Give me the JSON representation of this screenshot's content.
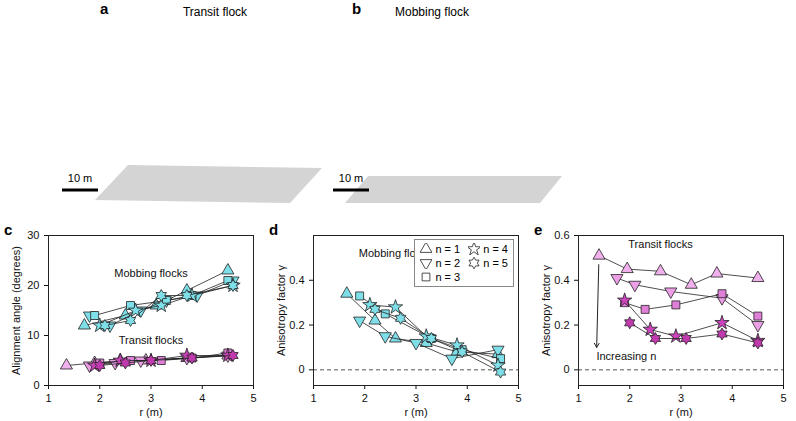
{
  "panels": [
    {
      "panel": "a",
      "title": "Transit flock",
      "scale_bar": "10 m"
    },
    {
      "panel": "b",
      "title": "Mobbing flock",
      "scale_bar": "10 m"
    }
  ],
  "chart_data": [
    {
      "type": "line",
      "panel": "c",
      "xlabel": "r (m)",
      "ylabel": "Alignment angle (degrees)",
      "xlim": [
        1,
        5
      ],
      "xticks": [
        1,
        2,
        3,
        4,
        5
      ],
      "ylim": [
        0,
        30
      ],
      "yticks": [
        0,
        10,
        20,
        30
      ],
      "grid": false,
      "annotations": [
        {
          "text": "Mobbing flocks",
          "x": 3.0,
          "y": 22.5
        },
        {
          "text": "Transit flocks",
          "x": 3.0,
          "y": 9
        }
      ],
      "series": [
        {
          "name": "n = 1",
          "marker": "triangle",
          "color": "#7fdfe9",
          "x": [
            1.7,
            2.5,
            3.1,
            3.7,
            4.5
          ],
          "values": [
            12,
            14,
            16,
            19,
            23
          ]
        },
        {
          "name": "n = 2",
          "marker": "triangle-down",
          "color": "#7fdfe9",
          "x": [
            1.8,
            2.2,
            2.8,
            3.3,
            3.9,
            4.6
          ],
          "values": [
            14,
            12,
            15,
            17,
            18,
            21
          ]
        },
        {
          "name": "n = 3",
          "marker": "square",
          "color": "#7fdfe9",
          "x": [
            1.9,
            2.6,
            3.3,
            3.8,
            4.5
          ],
          "values": [
            14,
            16,
            17,
            18,
            21
          ]
        },
        {
          "name": "n = 4",
          "marker": "star",
          "color": "#7fdfe9",
          "x": [
            2.0,
            2.7,
            3.2,
            3.8,
            4.6
          ],
          "values": [
            12,
            15,
            16,
            18,
            20
          ]
        },
        {
          "name": "n = 5",
          "marker": "hexagram",
          "color": "#7fdfe9",
          "x": [
            2.1,
            2.6,
            3.2,
            3.7,
            4.6
          ],
          "values": [
            12,
            13,
            18,
            18,
            20
          ]
        },
        {
          "name": "n = 1",
          "marker": "triangle",
          "color": "#f0b0ec",
          "x": [
            1.35,
            1.9,
            2.4,
            2.9,
            3.7,
            4.5
          ],
          "values": [
            4,
            4.5,
            5,
            5,
            5.5,
            6
          ]
        },
        {
          "name": "n = 2",
          "marker": "triangle-down",
          "color": "#ec9fe6",
          "x": [
            1.8,
            2.3,
            2.8,
            3.7,
            4.5
          ],
          "values": [
            4,
            4.5,
            5,
            5.5,
            6
          ]
        },
        {
          "name": "n = 3",
          "marker": "square",
          "color": "#e07fd8",
          "x": [
            2.0,
            2.6,
            3.2,
            3.8,
            4.5
          ],
          "values": [
            4.5,
            5,
            5,
            5.5,
            6.5
          ]
        },
        {
          "name": "n = 4",
          "marker": "star",
          "color": "#cc44bb",
          "x": [
            1.9,
            2.4,
            3.0,
            3.7,
            4.5
          ],
          "values": [
            4,
            5,
            5,
            6,
            6
          ]
        },
        {
          "name": "n = 5",
          "marker": "hexagram",
          "color": "#c03aae",
          "x": [
            2.0,
            2.5,
            3.0,
            3.8,
            4.6
          ],
          "values": [
            4,
            4.5,
            5,
            5.5,
            6
          ]
        }
      ]
    },
    {
      "type": "line",
      "panel": "d",
      "xlabel": "r (m)",
      "ylabel": "Anisotropy factor γ",
      "xlim": [
        1,
        5
      ],
      "xticks": [
        1,
        2,
        3,
        4,
        5
      ],
      "ylim": [
        -0.07,
        0.6
      ],
      "yticks": [
        0,
        0.2,
        0.4
      ],
      "grid": false,
      "legend": "top right",
      "annotations": [
        {
          "text": "Mobbing flocks",
          "x": 2.6,
          "y": 0.52
        }
      ],
      "series": [
        {
          "name": "n = 1",
          "marker": "triangle",
          "color": "#7fdfe9",
          "x": [
            1.65,
            2.2,
            2.6,
            3.2,
            3.8,
            4.6
          ],
          "values": [
            0.34,
            0.22,
            0.14,
            0.12,
            0.08,
            0.07
          ]
        },
        {
          "name": "n = 2",
          "marker": "triangle-down",
          "color": "#7fdfe9",
          "x": [
            1.9,
            2.4,
            3.0,
            3.7,
            4.6
          ],
          "values": [
            0.22,
            0.15,
            0.12,
            0.05,
            0.09
          ]
        },
        {
          "name": "n = 3",
          "marker": "square",
          "color": "#7fdfe9",
          "x": [
            1.9,
            2.4,
            3.3,
            3.9,
            4.65
          ],
          "values": [
            0.33,
            0.25,
            0.14,
            0.09,
            0.05
          ]
        },
        {
          "name": "n = 4",
          "marker": "star",
          "color": "#7fdfe9",
          "x": [
            2.1,
            2.6,
            3.2,
            3.8,
            4.6
          ],
          "values": [
            0.29,
            0.28,
            0.15,
            0.11,
            0.02
          ]
        },
        {
          "name": "n = 5",
          "marker": "hexagram",
          "color": "#7fdfe9",
          "x": [
            2.2,
            2.7,
            3.3,
            3.9,
            4.65
          ],
          "values": [
            0.27,
            0.23,
            0.14,
            0.08,
            -0.01
          ]
        }
      ]
    },
    {
      "type": "line",
      "panel": "e",
      "xlabel": "r (m)",
      "ylabel": "Anisotropy factor γ",
      "xlim": [
        1,
        5
      ],
      "xticks": [
        1,
        2,
        3,
        4,
        5
      ],
      "ylim": [
        -0.07,
        0.6
      ],
      "yticks": [
        0,
        0.2,
        0.4,
        0.6
      ],
      "grid": false,
      "annotations": [
        {
          "text": "Transit flocks",
          "x": 2.6,
          "y": 0.56
        },
        {
          "text": "Increasing n",
          "x": 1.35,
          "y": 0.06,
          "marker": "arrow"
        }
      ],
      "series": [
        {
          "name": "n = 1",
          "marker": "triangle",
          "color": "#f0b0ec",
          "x": [
            1.4,
            1.95,
            2.6,
            3.2,
            3.7,
            4.5
          ],
          "values": [
            0.51,
            0.45,
            0.44,
            0.38,
            0.43,
            0.41
          ]
        },
        {
          "name": "n = 2",
          "marker": "triangle-down",
          "color": "#ec9fe6",
          "x": [
            1.75,
            2.1,
            2.8,
            3.8,
            4.5
          ],
          "values": [
            0.41,
            0.38,
            0.35,
            0.32,
            0.2
          ]
        },
        {
          "name": "n = 3",
          "marker": "square",
          "color": "#e07fd8",
          "x": [
            1.9,
            2.3,
            2.9,
            3.8,
            4.5
          ],
          "values": [
            0.3,
            0.27,
            0.29,
            0.34,
            0.24
          ]
        },
        {
          "name": "n = 4",
          "marker": "star",
          "color": "#cc44bb",
          "x": [
            1.9,
            2.4,
            2.9,
            3.8,
            4.5
          ],
          "values": [
            0.31,
            0.18,
            0.15,
            0.21,
            0.13
          ]
        },
        {
          "name": "n = 5",
          "marker": "hexagram",
          "color": "#c03aae",
          "x": [
            2.0,
            2.5,
            3.1,
            3.8,
            4.5
          ],
          "values": [
            0.21,
            0.14,
            0.14,
            0.16,
            0.12
          ]
        }
      ]
    }
  ]
}
